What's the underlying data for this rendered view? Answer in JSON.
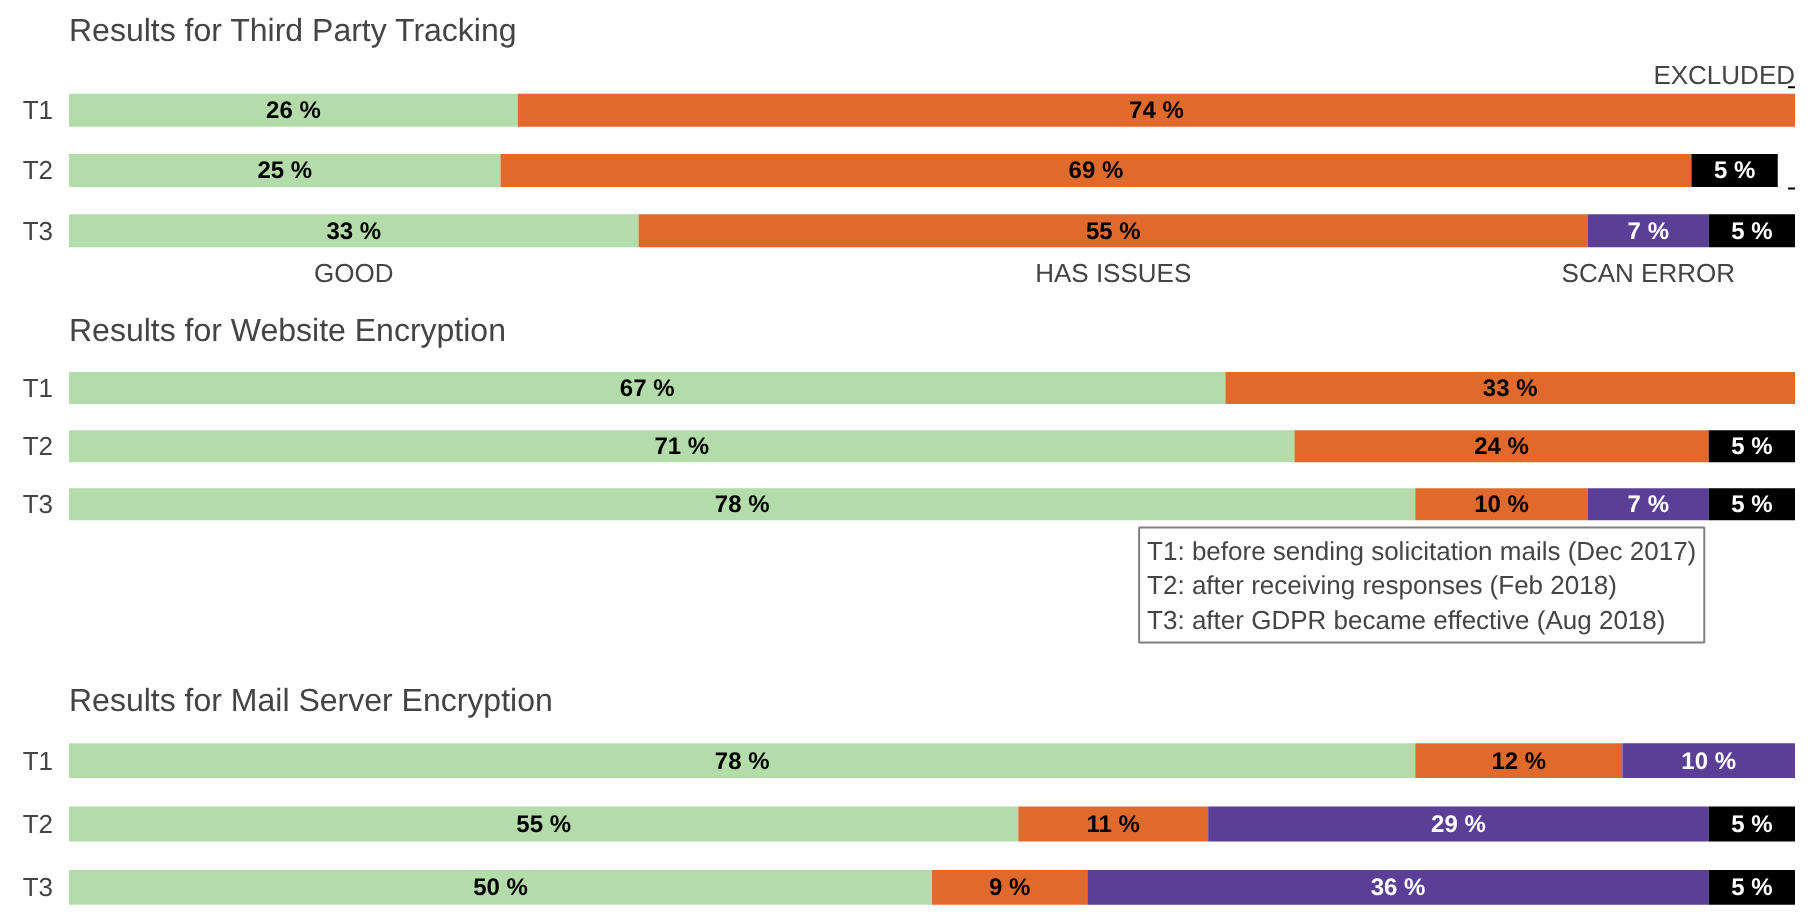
{
  "chart_data": [
    {
      "type": "bar",
      "orientation": "horizontal",
      "stacked": true,
      "title": "Results for Third Party Tracking",
      "categories": [
        "T1",
        "T2",
        "T3"
      ],
      "legend": "bottom",
      "series": [
        {
          "name": "GOOD",
          "color": "#b3dcaa",
          "values": [
            26,
            25,
            33
          ],
          "value_labels": [
            "26 %",
            "25 %",
            "33 %"
          ]
        },
        {
          "name": "HAS ISSUES",
          "color": "#e06a2b",
          "values": [
            74,
            69,
            55
          ],
          "value_labels": [
            "74 %",
            "69 %",
            "55 %"
          ]
        },
        {
          "name": "SCAN ERROR",
          "color": "#5b3f96",
          "values": [
            null,
            null,
            7
          ],
          "value_labels": [
            null,
            null,
            "7 %"
          ]
        },
        {
          "name": "EXCLUDED",
          "color": "#000000",
          "values": [
            null,
            5,
            5
          ],
          "value_labels": [
            null,
            "5 %",
            "5 %"
          ]
        }
      ]
    },
    {
      "type": "bar",
      "orientation": "horizontal",
      "stacked": true,
      "title": "Results for Website Encryption",
      "categories": [
        "T1",
        "T2",
        "T3"
      ],
      "annotations": [
        "T1: before sending solicitation mails (Dec 2017)\nT2: after receiving responses (Feb 2018)\nT3: after GDPR became effective (Aug 2018)"
      ],
      "series": [
        {
          "color": "#b3dcaa",
          "values": [
            67,
            71,
            78
          ],
          "value_labels": [
            "67 %",
            "71 %",
            "78 %"
          ]
        },
        {
          "color": "#e06a2b",
          "values": [
            33,
            24,
            10
          ],
          "value_labels": [
            "33 %",
            "24 %",
            "10 %"
          ]
        },
        {
          "color": "#5b3f96",
          "values": [
            null,
            null,
            7
          ],
          "value_labels": [
            null,
            null,
            "7 %"
          ]
        },
        {
          "color": "#000000",
          "values": [
            null,
            5,
            5
          ],
          "value_labels": [
            null,
            "5 %",
            "5 %"
          ]
        }
      ]
    },
    {
      "type": "bar",
      "orientation": "horizontal",
      "stacked": true,
      "title": "Results for Mail Server Encryption",
      "categories": [
        "T1",
        "T2",
        "T3"
      ],
      "series": [
        {
          "color": "#b3dcaa",
          "values": [
            78,
            55,
            50
          ],
          "value_labels": [
            "78 %",
            "55 %",
            "50 %"
          ]
        },
        {
          "color": "#e06a2b",
          "values": [
            12,
            11,
            9
          ],
          "value_labels": [
            "12 %",
            "11 %",
            "9 %"
          ]
        },
        {
          "color": "#5b3f96",
          "values": [
            10,
            29,
            36
          ],
          "value_labels": [
            "10 %",
            "29 %",
            "36 %"
          ]
        },
        {
          "color": "#000000",
          "values": [
            null,
            5,
            5
          ],
          "value_labels": [
            null,
            "5 %",
            "5 %"
          ]
        }
      ]
    }
  ]
}
